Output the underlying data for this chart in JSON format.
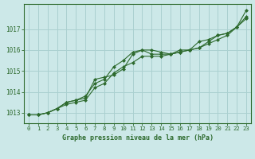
{
  "x": [
    0,
    1,
    2,
    3,
    4,
    5,
    6,
    7,
    8,
    9,
    10,
    11,
    12,
    13,
    14,
    15,
    16,
    17,
    18,
    19,
    20,
    21,
    22,
    23
  ],
  "line1": [
    1012.9,
    1012.9,
    1013.0,
    1013.2,
    1013.5,
    1013.6,
    1013.7,
    1014.6,
    1014.7,
    1014.8,
    1015.1,
    1015.8,
    1016.0,
    1016.0,
    1015.9,
    1015.8,
    1015.9,
    1016.0,
    1016.4,
    1016.5,
    1016.7,
    1016.8,
    1017.1,
    1017.9
  ],
  "line2": [
    1012.9,
    1012.9,
    1013.0,
    1013.2,
    1013.5,
    1013.6,
    1013.8,
    1014.4,
    1014.6,
    1015.2,
    1015.5,
    1015.9,
    1016.0,
    1015.8,
    1015.8,
    1015.8,
    1015.9,
    1016.0,
    1016.1,
    1016.4,
    1016.7,
    1016.8,
    1017.1,
    1017.6
  ],
  "line3": [
    1012.9,
    1012.9,
    1013.0,
    1013.2,
    1013.4,
    1013.5,
    1013.6,
    1014.2,
    1014.4,
    1014.9,
    1015.2,
    1015.4,
    1015.7,
    1015.7,
    1015.7,
    1015.8,
    1016.0,
    1016.0,
    1016.1,
    1016.3,
    1016.5,
    1016.7,
    1017.1,
    1017.5
  ],
  "line_color": "#2d6a2d",
  "bg_color": "#cce8e8",
  "grid_color": "#aad0d0",
  "axis_color": "#2d6a2d",
  "xlabel": "Graphe pression niveau de la mer (hPa)",
  "ylim_min": 1012.5,
  "ylim_max": 1018.2,
  "yticks": [
    1013,
    1014,
    1015,
    1016,
    1017
  ],
  "xticks": [
    0,
    1,
    2,
    3,
    4,
    5,
    6,
    7,
    8,
    9,
    10,
    11,
    12,
    13,
    14,
    15,
    16,
    17,
    18,
    19,
    20,
    21,
    22,
    23
  ],
  "xtick_labels": [
    "0",
    "1",
    "2",
    "3",
    "4",
    "5",
    "6",
    "7",
    "8",
    "9",
    "10",
    "11",
    "12",
    "13",
    "14",
    "15",
    "16",
    "17",
    "18",
    "19",
    "20",
    "21",
    "22",
    "23"
  ]
}
